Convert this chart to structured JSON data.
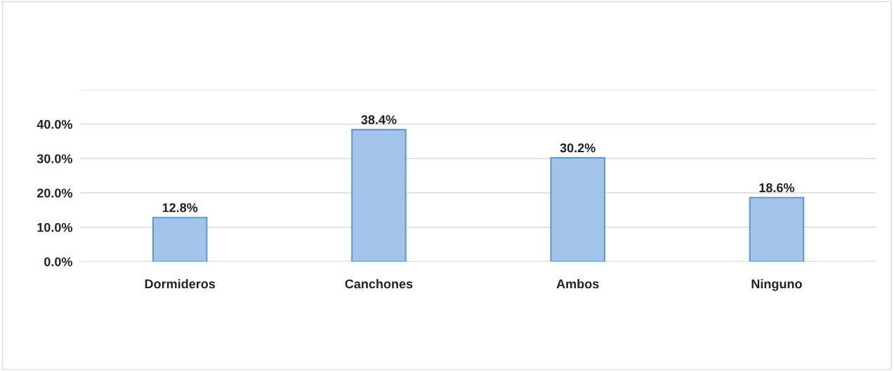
{
  "chart_data": {
    "type": "bar",
    "categories": [
      "Dormideros",
      "Canchones",
      "Ambos",
      "Ninguno"
    ],
    "values": [
      12.8,
      38.4,
      30.2,
      18.6
    ],
    "value_labels": [
      "12.8%",
      "38.4%",
      "30.2%",
      "18.6%"
    ],
    "color": "#a3c3e8",
    "ylim": [
      0,
      50
    ],
    "yticks": [
      {
        "value": 0,
        "label": "0.0%"
      },
      {
        "value": 10,
        "label": "10.0%"
      },
      {
        "value": 20,
        "label": "20.0%"
      },
      {
        "value": 30,
        "label": "30.0%"
      },
      {
        "value": 40,
        "label": "40.0%"
      },
      {
        "value": 50,
        "label": null
      }
    ],
    "grid": "y"
  }
}
